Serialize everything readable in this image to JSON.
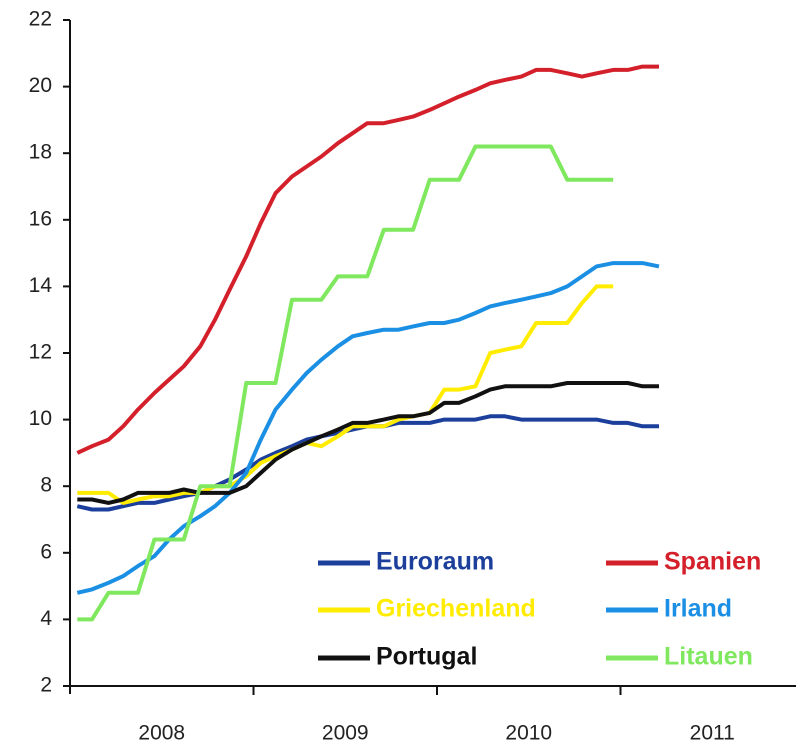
{
  "chart_data": {
    "type": "line",
    "x": [
      2008.04,
      2008.12,
      2008.21,
      2008.29,
      2008.37,
      2008.46,
      2008.54,
      2008.62,
      2008.71,
      2008.79,
      2008.87,
      2008.96,
      2009.04,
      2009.12,
      2009.21,
      2009.29,
      2009.37,
      2009.46,
      2009.54,
      2009.62,
      2009.71,
      2009.79,
      2009.87,
      2009.96,
      2010.04,
      2010.12,
      2010.21,
      2010.29,
      2010.37,
      2010.46,
      2010.54,
      2010.62,
      2010.71,
      2010.79,
      2010.87,
      2010.96,
      2011.04,
      2011.12,
      2011.21
    ],
    "series": [
      {
        "name": "Euroraum",
        "color": "#1c3f9c",
        "values": [
          7.4,
          7.3,
          7.3,
          7.4,
          7.5,
          7.5,
          7.6,
          7.7,
          7.8,
          8.0,
          8.2,
          8.5,
          8.8,
          9.0,
          9.2,
          9.4,
          9.5,
          9.6,
          9.7,
          9.8,
          9.8,
          9.9,
          9.9,
          9.9,
          10.0,
          10.0,
          10.0,
          10.1,
          10.1,
          10.0,
          10.0,
          10.0,
          10.0,
          10.0,
          10.0,
          9.9,
          9.9,
          9.8,
          9.8
        ]
      },
      {
        "name": "Spanien",
        "color": "#d4202b",
        "values": [
          9.0,
          9.2,
          9.4,
          9.8,
          10.3,
          10.8,
          11.2,
          11.6,
          12.2,
          13.0,
          13.9,
          14.9,
          15.9,
          16.8,
          17.3,
          17.6,
          17.9,
          18.3,
          18.6,
          18.9,
          18.9,
          19.0,
          19.1,
          19.3,
          19.5,
          19.7,
          19.9,
          20.1,
          20.2,
          20.3,
          20.5,
          20.5,
          20.4,
          20.3,
          20.4,
          20.5,
          20.5,
          20.6,
          20.6
        ]
      },
      {
        "name": "Griechenland",
        "color": "#ffec00",
        "values": [
          7.8,
          7.8,
          7.8,
          7.5,
          7.6,
          7.7,
          7.7,
          7.8,
          7.8,
          8.0,
          8.0,
          8.3,
          8.7,
          8.9,
          9.1,
          9.3,
          9.2,
          9.5,
          9.8,
          9.8,
          9.8,
          10.0,
          10.1,
          10.2,
          10.9,
          10.9,
          11.0,
          12.0,
          12.1,
          12.2,
          12.9,
          12.9,
          12.9,
          13.5,
          14.0,
          14.0,
          null,
          null,
          null
        ]
      },
      {
        "name": "Irland",
        "color": "#1a8fe3",
        "values": [
          4.8,
          4.9,
          5.1,
          5.3,
          5.6,
          5.9,
          6.4,
          6.8,
          7.1,
          7.4,
          7.8,
          8.4,
          9.4,
          10.3,
          10.9,
          11.4,
          11.8,
          12.2,
          12.5,
          12.6,
          12.7,
          12.7,
          12.8,
          12.9,
          12.9,
          13.0,
          13.2,
          13.4,
          13.5,
          13.6,
          13.7,
          13.8,
          14.0,
          14.3,
          14.6,
          14.7,
          14.7,
          14.7,
          14.6
        ]
      },
      {
        "name": "Portugal",
        "color": "#111111",
        "values": [
          7.6,
          7.6,
          7.5,
          7.6,
          7.8,
          7.8,
          7.8,
          7.9,
          7.8,
          7.8,
          7.8,
          8.0,
          8.4,
          8.8,
          9.1,
          9.3,
          9.5,
          9.7,
          9.9,
          9.9,
          10.0,
          10.1,
          10.1,
          10.2,
          10.5,
          10.5,
          10.7,
          10.9,
          11.0,
          11.0,
          11.0,
          11.0,
          11.1,
          11.1,
          11.1,
          11.1,
          11.1,
          11.0,
          11.0
        ]
      },
      {
        "name": "Litauen",
        "color": "#7fe85e",
        "values": [
          4.0,
          4.0,
          4.8,
          4.8,
          4.8,
          6.4,
          6.4,
          6.4,
          8.0,
          8.0,
          8.0,
          11.1,
          11.1,
          11.1,
          13.6,
          13.6,
          13.6,
          14.3,
          14.3,
          14.3,
          15.7,
          15.7,
          15.7,
          17.2,
          17.2,
          17.2,
          18.2,
          18.2,
          18.2,
          18.2,
          18.2,
          18.2,
          17.2,
          17.2,
          17.2,
          17.2,
          null,
          null,
          null
        ]
      }
    ],
    "xlim": [
      2008,
      2012
    ],
    "xticks": [
      {
        "value": 2008.5,
        "label": "2008"
      },
      {
        "value": 2009.5,
        "label": "2009"
      },
      {
        "value": 2010.5,
        "label": "2010"
      },
      {
        "value": 2011.5,
        "label": "2011"
      }
    ],
    "ylim": [
      2,
      22
    ],
    "yticks": [
      2,
      4,
      6,
      8,
      10,
      12,
      14,
      16,
      18,
      20,
      22
    ],
    "grid": false,
    "legend": "lower right"
  }
}
